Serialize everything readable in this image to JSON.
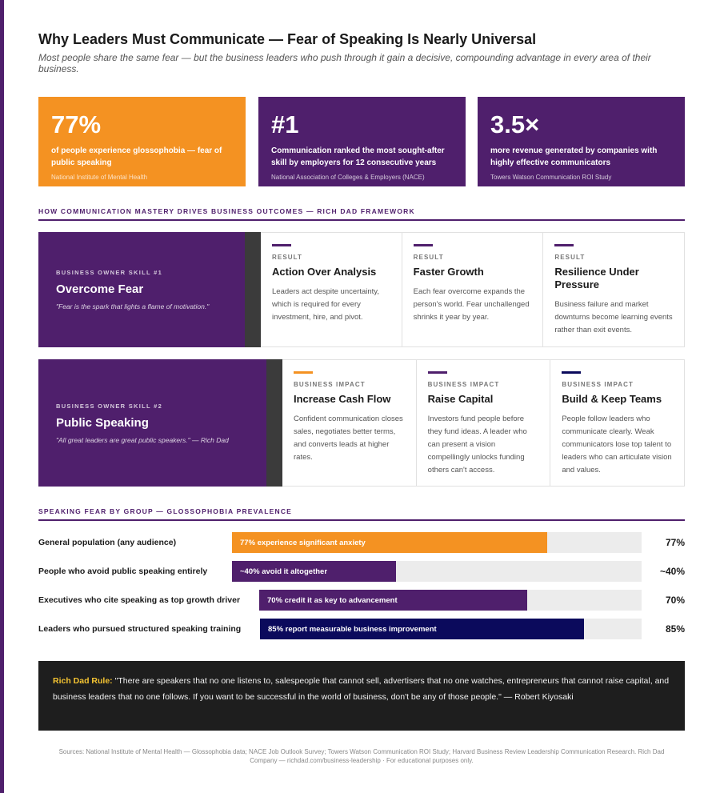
{
  "header": {
    "title": "Why Leaders Must Communicate — Fear of Speaking Is Nearly Universal",
    "subtitle": "Most people share the same fear — but the business leaders who push through it gain a decisive, compounding advantage in every area of their business."
  },
  "stats": [
    {
      "value": "77%",
      "description": "of people experience glossophobia — fear of public speaking",
      "source": "National Institute of Mental Health",
      "color": "#f49222"
    },
    {
      "value": "#1",
      "description": "Communication ranked the most sought-after skill by employers for 12 consecutive years",
      "source": "National Association of Colleges & Employers (NACE)",
      "color": "#4f1f6c"
    },
    {
      "value": "3.5×",
      "description": "more revenue generated by companies with highly effective communicators",
      "source": "Towers Watson Communication ROI Study",
      "color": "#4f1f6c"
    }
  ],
  "framework": {
    "heading": "HOW COMMUNICATION MASTERY DRIVES BUSINESS OUTCOMES — RICH DAD FRAMEWORK",
    "skills": [
      {
        "kicker": "BUSINESS OWNER SKILL #1",
        "name": "Overcome Fear",
        "quote": "\"Fear is the spark that lights a flame of motivation.\"",
        "cards": [
          {
            "kicker": "RESULT",
            "title": "Action Over Analysis",
            "body": "Leaders act despite uncertainty, which is required for every investment, hire, and pivot.",
            "tick_color": "#4f1f6c"
          },
          {
            "kicker": "RESULT",
            "title": "Faster Growth",
            "body": "Each fear overcome expands the person's world. Fear unchallenged shrinks it year by year.",
            "tick_color": "#4f1f6c"
          },
          {
            "kicker": "RESULT",
            "title": "Resilience Under Pressure",
            "body": "Business failure and market downturns become learning events rather than exit events.",
            "tick_color": "#4f1f6c"
          }
        ]
      },
      {
        "kicker": "BUSINESS OWNER SKILL #2",
        "name": "Public Speaking",
        "quote": "\"All great leaders are great public speakers.\" — Rich Dad",
        "cards": [
          {
            "kicker": "BUSINESS IMPACT",
            "title": "Increase Cash Flow",
            "body": "Confident communication closes sales, negotiates better terms, and converts leads at higher rates.",
            "tick_color": "#f49222"
          },
          {
            "kicker": "BUSINESS IMPACT",
            "title": "Raise Capital",
            "body": "Investors fund people before they fund ideas. A leader who can present a vision compellingly unlocks funding others can't access.",
            "tick_color": "#4f1f6c"
          },
          {
            "kicker": "BUSINESS IMPACT",
            "title": "Build & Keep Teams",
            "body": "People follow leaders who communicate clearly. Weak communicators lose top talent to leaders who can articulate vision and values.",
            "tick_color": "#0b0a5c"
          }
        ]
      }
    ]
  },
  "group_chart": {
    "heading": "SPEAKING FEAR BY GROUP — GLOSSOPHOBIA PREVALENCE",
    "rows": [
      {
        "label": "General population (any audience)",
        "bar_text": "77% experience significant anxiety",
        "percent_text": "77%",
        "value": 77,
        "color": "#f49222"
      },
      {
        "label": "People who avoid public speaking entirely",
        "bar_text": "~40% avoid it altogether",
        "percent_text": "~40%",
        "value": 40,
        "color": "#4f1f6c"
      },
      {
        "label": "Executives who cite speaking as top growth driver",
        "bar_text": "70% credit it as key to advancement",
        "percent_text": "70%",
        "value": 70,
        "color": "#4f1f6c"
      },
      {
        "label": "Leaders who pursued structured speaking training",
        "bar_text": "85% report measurable business improvement",
        "percent_text": "85%",
        "value": 85,
        "color": "#0b0a5c"
      }
    ]
  },
  "rule": {
    "lead": "Rich Dad Rule:",
    "text": " \"There are speakers that no one listens to, salespeople that cannot sell, advertisers that no one watches, entrepreneurs that cannot raise capital, and business leaders that no one follows. If you want to be successful in the world of business, don't be any of those people.\" — Robert Kiyosaki"
  },
  "footer": {
    "text": "Sources: National Institute of Mental Health — Glossophobia data; NACE Job Outlook Survey; Towers Watson Communication ROI Study; Harvard Business Review Leadership Communication Research. Rich Dad Company — richdad.com/business-leadership · For educational purposes only."
  }
}
